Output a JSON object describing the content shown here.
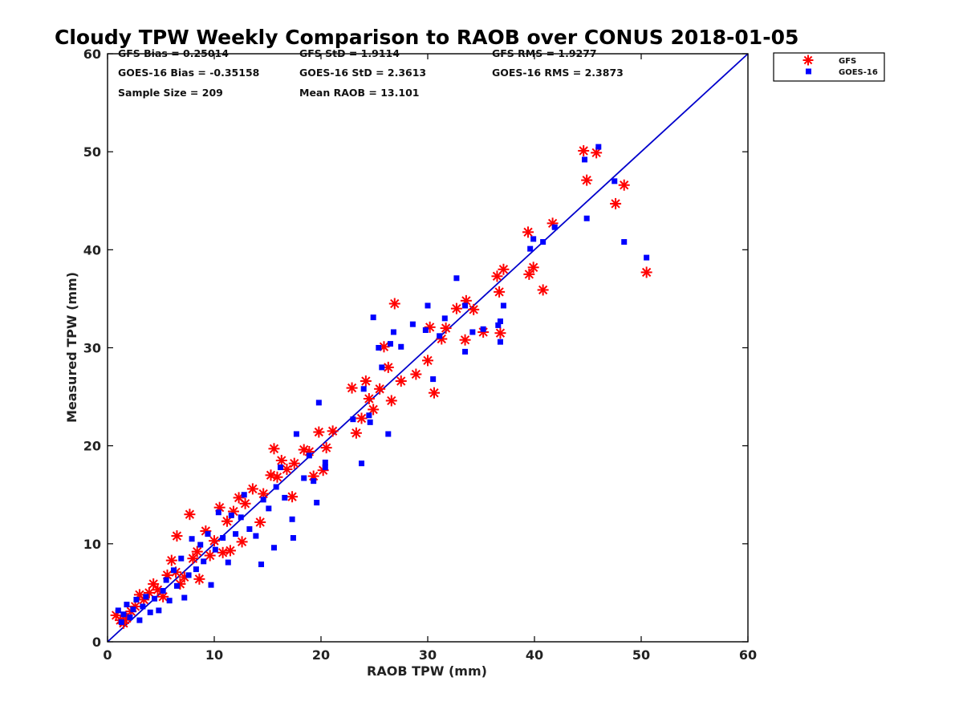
{
  "chart_data": {
    "type": "scatter",
    "title": "Cloudy TPW Weekly Comparison to RAOB over CONUS 2018-01-05",
    "xlabel": "RAOB TPW (mm)",
    "ylabel": "Measured TPW (mm)",
    "xlim": [
      0,
      60
    ],
    "ylim": [
      0,
      60
    ],
    "xticks": [
      "0",
      "10",
      "20",
      "30",
      "40",
      "50",
      "60"
    ],
    "yticks": [
      "0",
      "10",
      "20",
      "30",
      "40",
      "50",
      "60"
    ],
    "grid": false,
    "legend_position": "outside-top-right",
    "reference_line": {
      "x": [
        0,
        60
      ],
      "y": [
        0,
        60
      ],
      "color": "#0000cc"
    },
    "stats": {
      "row1": [
        "GFS Bias = 0.25014",
        "GFS StD = 1.9114",
        "GFS RMS = 1.9277"
      ],
      "row2": [
        "GOES-16 Bias = -0.35158",
        "GOES-16 StD = 2.3613",
        "GOES-16 RMS = 2.3873"
      ],
      "row3": [
        "Sample Size = 209",
        "Mean RAOB = 13.101"
      ]
    },
    "series": [
      {
        "name": "GFS",
        "marker": "asterisk",
        "color": "#ff0000",
        "points": [
          [
            0.8,
            2.7
          ],
          [
            1.2,
            2.2
          ],
          [
            1.5,
            1.9
          ],
          [
            1.8,
            2.4
          ],
          [
            2.2,
            3.1
          ],
          [
            2.6,
            3.6
          ],
          [
            3.0,
            4.8
          ],
          [
            3.4,
            4.3
          ],
          [
            3.9,
            5.0
          ],
          [
            4.3,
            5.9
          ],
          [
            4.7,
            5.3
          ],
          [
            5.2,
            4.6
          ],
          [
            5.6,
            6.8
          ],
          [
            6.0,
            8.3
          ],
          [
            6.4,
            7.1
          ],
          [
            6.8,
            5.9
          ],
          [
            7.2,
            6.6
          ],
          [
            7.7,
            13.0
          ],
          [
            6.5,
            10.8
          ],
          [
            8.0,
            8.5
          ],
          [
            8.4,
            9.2
          ],
          [
            8.6,
            6.4
          ],
          [
            9.2,
            11.3
          ],
          [
            9.6,
            8.8
          ],
          [
            10.0,
            10.3
          ],
          [
            10.5,
            13.7
          ],
          [
            10.8,
            9.1
          ],
          [
            11.2,
            12.3
          ],
          [
            11.5,
            9.3
          ],
          [
            11.8,
            13.3
          ],
          [
            12.3,
            14.7
          ],
          [
            12.6,
            10.2
          ],
          [
            12.9,
            14.1
          ],
          [
            13.6,
            15.6
          ],
          [
            14.3,
            12.2
          ],
          [
            14.6,
            15.1
          ],
          [
            15.3,
            17.0
          ],
          [
            15.6,
            19.7
          ],
          [
            15.9,
            16.8
          ],
          [
            16.3,
            18.5
          ],
          [
            16.8,
            17.6
          ],
          [
            17.3,
            14.8
          ],
          [
            17.5,
            18.2
          ],
          [
            18.4,
            19.6
          ],
          [
            18.9,
            19.4
          ],
          [
            19.3,
            16.9
          ],
          [
            19.8,
            21.4
          ],
          [
            20.2,
            17.5
          ],
          [
            20.5,
            19.8
          ],
          [
            21.1,
            21.5
          ],
          [
            22.9,
            25.9
          ],
          [
            23.3,
            21.3
          ],
          [
            23.8,
            22.8
          ],
          [
            24.2,
            26.6
          ],
          [
            24.5,
            24.8
          ],
          [
            24.9,
            23.7
          ],
          [
            25.5,
            25.8
          ],
          [
            25.9,
            30.1
          ],
          [
            26.3,
            28.0
          ],
          [
            26.6,
            24.6
          ],
          [
            26.9,
            34.5
          ],
          [
            27.5,
            26.6
          ],
          [
            28.9,
            27.3
          ],
          [
            30.0,
            28.7
          ],
          [
            30.2,
            32.1
          ],
          [
            30.6,
            25.4
          ],
          [
            31.3,
            30.9
          ],
          [
            31.7,
            32.0
          ],
          [
            32.7,
            34.0
          ],
          [
            33.5,
            30.8
          ],
          [
            33.6,
            34.8
          ],
          [
            34.3,
            33.9
          ],
          [
            35.2,
            31.6
          ],
          [
            36.5,
            37.3
          ],
          [
            36.7,
            35.7
          ],
          [
            36.8,
            31.5
          ],
          [
            37.1,
            38.0
          ],
          [
            39.4,
            41.8
          ],
          [
            39.5,
            37.5
          ],
          [
            39.9,
            38.2
          ],
          [
            40.8,
            35.9
          ],
          [
            41.7,
            42.7
          ],
          [
            44.6,
            50.1
          ],
          [
            44.9,
            47.1
          ],
          [
            45.8,
            49.9
          ],
          [
            47.6,
            44.7
          ],
          [
            48.4,
            46.6
          ],
          [
            50.5,
            37.7
          ]
        ]
      },
      {
        "name": "GOES-16",
        "marker": "square",
        "color": "#0000ff",
        "points": [
          [
            1.0,
            3.2
          ],
          [
            1.3,
            2.0
          ],
          [
            1.5,
            2.8
          ],
          [
            1.8,
            3.8
          ],
          [
            2.1,
            2.5
          ],
          [
            2.4,
            3.3
          ],
          [
            2.7,
            4.3
          ],
          [
            3.0,
            2.2
          ],
          [
            3.3,
            3.6
          ],
          [
            3.6,
            4.6
          ],
          [
            4.0,
            3.0
          ],
          [
            4.4,
            4.4
          ],
          [
            4.8,
            3.2
          ],
          [
            5.2,
            5.2
          ],
          [
            5.5,
            6.3
          ],
          [
            5.8,
            4.2
          ],
          [
            6.2,
            7.3
          ],
          [
            6.5,
            5.7
          ],
          [
            6.9,
            8.5
          ],
          [
            7.2,
            4.5
          ],
          [
            7.6,
            6.8
          ],
          [
            7.9,
            10.5
          ],
          [
            8.3,
            7.4
          ],
          [
            8.7,
            9.9
          ],
          [
            9.0,
            8.2
          ],
          [
            9.4,
            11.0
          ],
          [
            9.7,
            5.8
          ],
          [
            10.1,
            9.4
          ],
          [
            10.4,
            13.2
          ],
          [
            10.8,
            10.6
          ],
          [
            11.3,
            8.1
          ],
          [
            11.6,
            12.9
          ],
          [
            12.0,
            11.0
          ],
          [
            12.5,
            12.7
          ],
          [
            12.8,
            15.0
          ],
          [
            13.3,
            11.5
          ],
          [
            13.9,
            10.8
          ],
          [
            14.4,
            7.9
          ],
          [
            14.6,
            14.5
          ],
          [
            15.1,
            13.6
          ],
          [
            15.6,
            9.6
          ],
          [
            15.8,
            15.8
          ],
          [
            16.2,
            17.8
          ],
          [
            16.6,
            14.7
          ],
          [
            17.3,
            12.5
          ],
          [
            17.4,
            10.6
          ],
          [
            17.7,
            21.2
          ],
          [
            18.4,
            16.7
          ],
          [
            18.9,
            19.0
          ],
          [
            19.3,
            16.4
          ],
          [
            19.6,
            14.2
          ],
          [
            19.8,
            24.4
          ],
          [
            20.4,
            18.3
          ],
          [
            20.4,
            17.8
          ],
          [
            23.0,
            22.7
          ],
          [
            23.8,
            18.2
          ],
          [
            24.0,
            25.8
          ],
          [
            24.5,
            23.1
          ],
          [
            24.6,
            22.4
          ],
          [
            24.9,
            33.1
          ],
          [
            25.4,
            30.0
          ],
          [
            25.7,
            28.0
          ],
          [
            26.3,
            21.2
          ],
          [
            26.5,
            30.4
          ],
          [
            26.8,
            31.6
          ],
          [
            27.5,
            30.1
          ],
          [
            28.6,
            32.4
          ],
          [
            29.8,
            31.8
          ],
          [
            30.0,
            34.3
          ],
          [
            30.5,
            26.8
          ],
          [
            31.1,
            31.2
          ],
          [
            31.6,
            33.0
          ],
          [
            32.7,
            37.1
          ],
          [
            33.5,
            29.6
          ],
          [
            33.5,
            34.3
          ],
          [
            34.2,
            31.6
          ],
          [
            35.2,
            31.9
          ],
          [
            36.6,
            32.3
          ],
          [
            36.8,
            32.7
          ],
          [
            36.8,
            30.6
          ],
          [
            37.1,
            34.3
          ],
          [
            39.6,
            40.1
          ],
          [
            39.9,
            41.1
          ],
          [
            40.8,
            40.8
          ],
          [
            41.9,
            42.3
          ],
          [
            44.7,
            49.2
          ],
          [
            44.9,
            43.2
          ],
          [
            46.0,
            50.5
          ],
          [
            47.5,
            47.0
          ],
          [
            48.4,
            40.8
          ],
          [
            50.5,
            39.2
          ]
        ]
      }
    ]
  }
}
